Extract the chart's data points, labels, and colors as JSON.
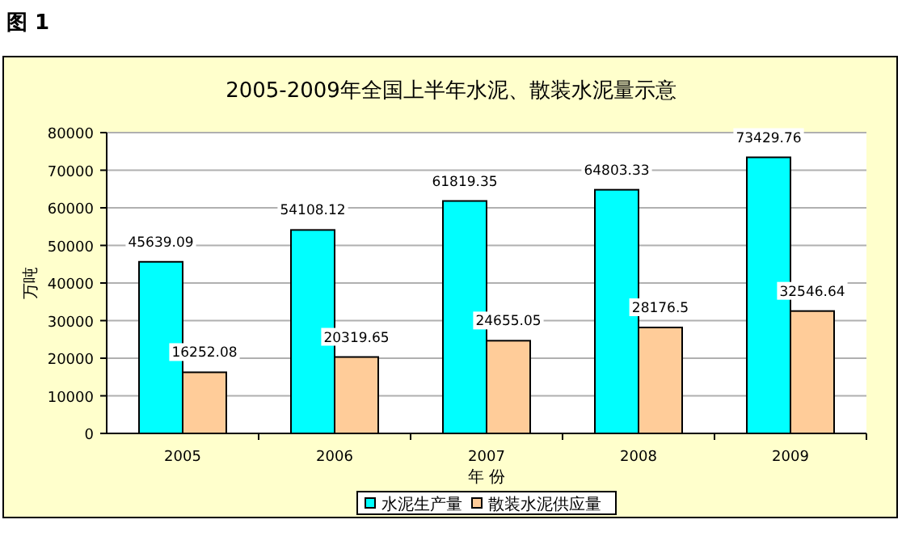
{
  "chart_data": {
    "type": "bar",
    "title": "2005-2009年全国上半年水泥、散装水泥量示意",
    "xlabel": "年 份",
    "ylabel": "万吨",
    "annotations": [
      "图 1"
    ],
    "categories": [
      "2005",
      "2006",
      "2007",
      "2008",
      "2009"
    ],
    "series": [
      {
        "name": "水泥生产量",
        "color": "#00ffff",
        "values": [
          45639.09,
          54108.12,
          61819.35,
          64803.33,
          73429.76
        ]
      },
      {
        "name": "散装水泥供应量",
        "color": "#ffcc99",
        "values": [
          16252.08,
          20319.65,
          24655.05,
          28176.5,
          32546.64
        ]
      }
    ],
    "ylim": [
      0,
      80000
    ],
    "yticks": [
      0,
      10000,
      20000,
      30000,
      40000,
      50000,
      60000,
      70000,
      80000
    ],
    "grid": "y",
    "data_labels": true,
    "legend": "bottom"
  }
}
